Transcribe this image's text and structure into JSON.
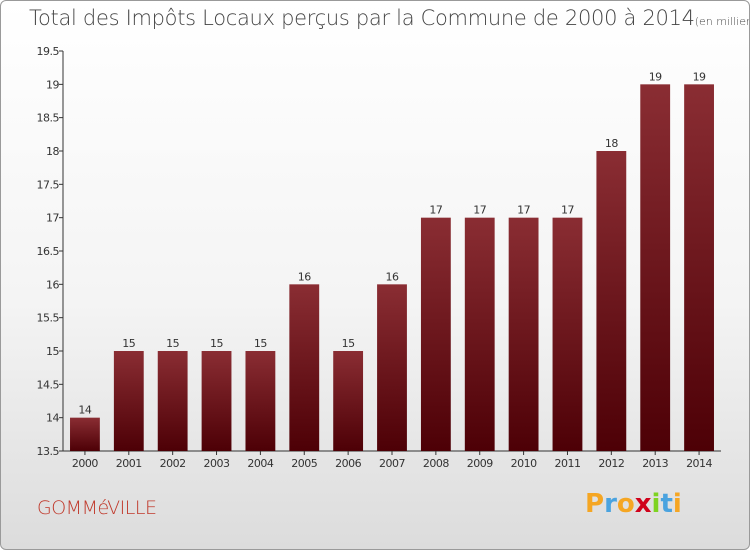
{
  "page": {
    "title": "Total des Impôts Locaux perçus par la Commune de 2000 à 2014",
    "unit_note": "(en milliers d'€)",
    "commune": "GOMMéVILLE",
    "logo": {
      "letters": [
        "P",
        "r",
        "o",
        "x",
        "i",
        "t",
        "i"
      ],
      "colors": [
        "#f5a623",
        "#4aa3df",
        "#f5a623",
        "#d0021b",
        "#7ed321",
        "#4aa3df",
        "#f5a623"
      ]
    }
  },
  "chart_data": {
    "type": "bar",
    "title": "Total des Impôts Locaux perçus par la Commune de 2000 à 2014",
    "ylabel": "en milliers d'€",
    "categories": [
      "2000",
      "2001",
      "2002",
      "2003",
      "2004",
      "2005",
      "2006",
      "2007",
      "2008",
      "2009",
      "2010",
      "2011",
      "2012",
      "2013",
      "2014"
    ],
    "values": [
      14,
      15,
      15,
      15,
      15,
      16,
      15,
      16,
      17,
      17,
      17,
      17,
      18,
      19,
      19
    ],
    "value_labels": [
      "14",
      "15",
      "15",
      "15",
      "15",
      "16",
      "15",
      "16",
      "17",
      "17",
      "17",
      "17",
      "18",
      "19",
      "19"
    ],
    "ylim": [
      13.5,
      19.5
    ],
    "yticks": [
      13.5,
      14,
      14.5,
      15,
      15.5,
      16,
      16.5,
      17,
      17.5,
      18,
      18.5,
      19,
      19.5
    ],
    "ytick_labels": [
      "13.5",
      "14",
      "14.5",
      "15",
      "15.5",
      "16",
      "16.5",
      "17",
      "17.5",
      "18",
      "18.5",
      "19",
      "19.5"
    ],
    "bar_color": "#6b0f12",
    "grid": false
  }
}
